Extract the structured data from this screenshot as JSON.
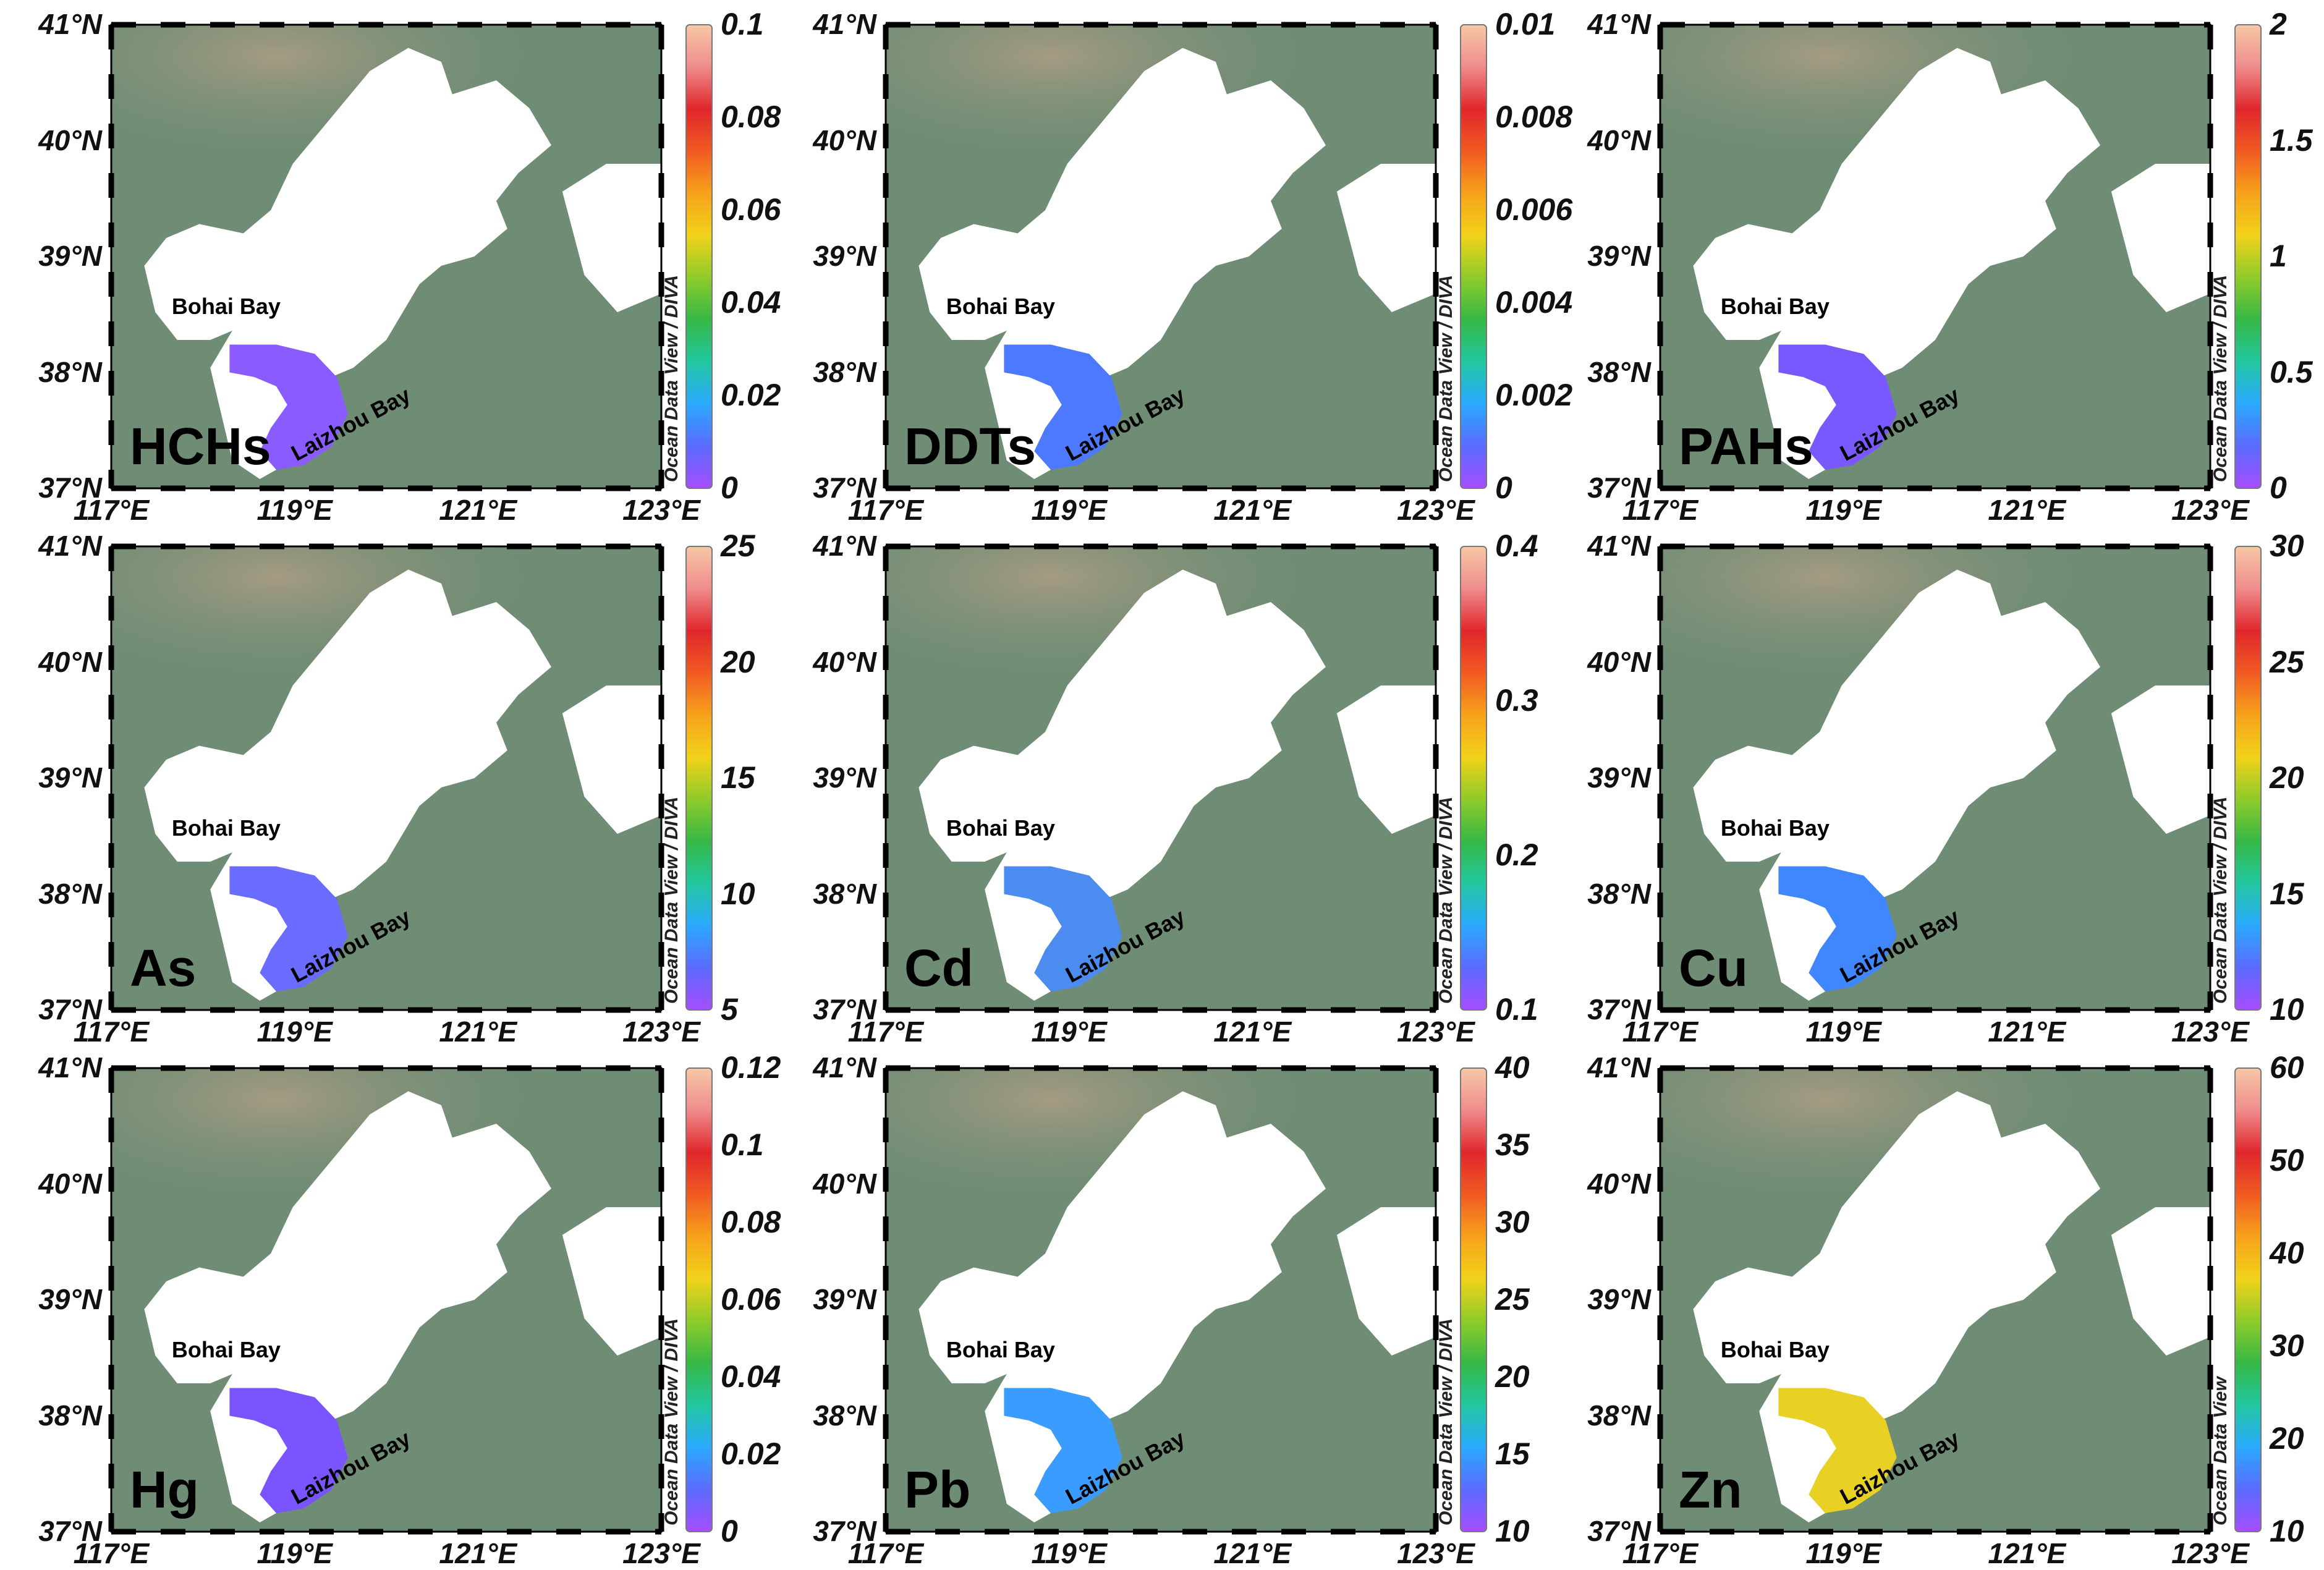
{
  "lat_labels": [
    "41°N",
    "40°N",
    "39°N",
    "38°N",
    "37°N"
  ],
  "lon_labels": [
    "117°E",
    "119°E",
    "121°E",
    "123°E"
  ],
  "bay_labels": {
    "bohai": "Bohai Bay",
    "laizhou": "Laizhou Bay"
  },
  "colors": {
    "land": "#6f8c74",
    "highland": "#a59b82",
    "sea": "#ffffff",
    "colorscale": [
      "#a64dff",
      "#5b6bff",
      "#2aa9ff",
      "#22c7a0",
      "#35b845",
      "#8fcb2a",
      "#f2d21a",
      "#f7a21b",
      "#f15a22",
      "#e0262b",
      "#ef8c8c",
      "#f7c8a6"
    ]
  },
  "panels": [
    {
      "label": "HCHs",
      "ticks": [
        "0.1",
        "0.08",
        "0.06",
        "0.04",
        "0.02",
        "0"
      ],
      "credit": "Ocean Data View / DIVA",
      "dominant_color": "#8a5cff"
    },
    {
      "label": "DDTs",
      "ticks": [
        "0.01",
        "0.008",
        "0.006",
        "0.004",
        "0.002",
        "0"
      ],
      "credit": "Ocean Data View / DIVA",
      "dominant_color": "#4d79ff"
    },
    {
      "label": "PAHs",
      "ticks": [
        "2",
        "1.5",
        "1",
        "0.5",
        "0"
      ],
      "credit": "Ocean Data View / DIVA",
      "dominant_color": "#7a58ff"
    },
    {
      "label": "As",
      "ticks": [
        "25",
        "20",
        "15",
        "10",
        "5"
      ],
      "credit": "Ocean Data View / DIVA",
      "dominant_color": "#6a6bff"
    },
    {
      "label": "Cd",
      "ticks": [
        "0.4",
        "0.3",
        "0.2",
        "0.1"
      ],
      "credit": "Ocean Data View / DIVA",
      "dominant_color": "#4c8cf0"
    },
    {
      "label": "Cu",
      "ticks": [
        "30",
        "25",
        "20",
        "15",
        "10"
      ],
      "credit": "Ocean Data View / DIVA",
      "dominant_color": "#3f86ff"
    },
    {
      "label": "Hg",
      "ticks": [
        "0.12",
        "0.1",
        "0.08",
        "0.06",
        "0.04",
        "0.02",
        "0"
      ],
      "credit": "Ocean Data View / DIVA",
      "dominant_color": "#7a55ff"
    },
    {
      "label": "Pb",
      "ticks": [
        "40",
        "35",
        "30",
        "25",
        "20",
        "15",
        "10"
      ],
      "credit": "Ocean Data View / DIVA",
      "dominant_color": "#3a9cff"
    },
    {
      "label": "Zn",
      "ticks": [
        "60",
        "50",
        "40",
        "30",
        "20",
        "10"
      ],
      "credit": "Ocean Data View",
      "dominant_color": "#e8d024"
    }
  ]
}
